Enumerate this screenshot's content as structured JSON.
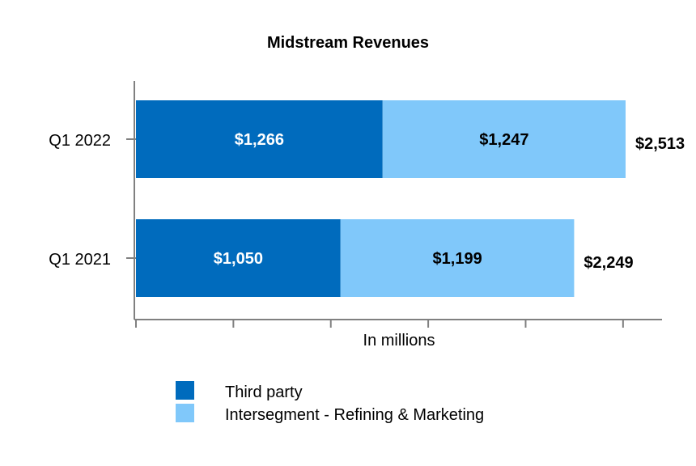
{
  "chart_data": {
    "type": "bar",
    "orientation": "horizontal",
    "stacked": true,
    "title": "Midstream Revenues",
    "xlabel": "In millions",
    "ylabel": "",
    "xlim": [
      0,
      2700
    ],
    "grid": false,
    "legend_position": "bottom",
    "categories": [
      "Q1 2022",
      "Q1 2021"
    ],
    "series": [
      {
        "name": "Third party",
        "color": "#006bbd",
        "label_color": "#ffffff",
        "values": [
          1266,
          1050
        ],
        "labels": [
          "$1,266",
          "$1,050"
        ]
      },
      {
        "name": "Intersegment - Refining & Marketing",
        "color": "#80c8fa",
        "label_color": "#000000",
        "values": [
          1247,
          1199
        ],
        "labels": [
          "$1,247",
          "$1,199"
        ]
      }
    ],
    "totals": [
      2513,
      2249
    ],
    "total_labels": [
      "$2,513",
      "$2,249"
    ]
  }
}
